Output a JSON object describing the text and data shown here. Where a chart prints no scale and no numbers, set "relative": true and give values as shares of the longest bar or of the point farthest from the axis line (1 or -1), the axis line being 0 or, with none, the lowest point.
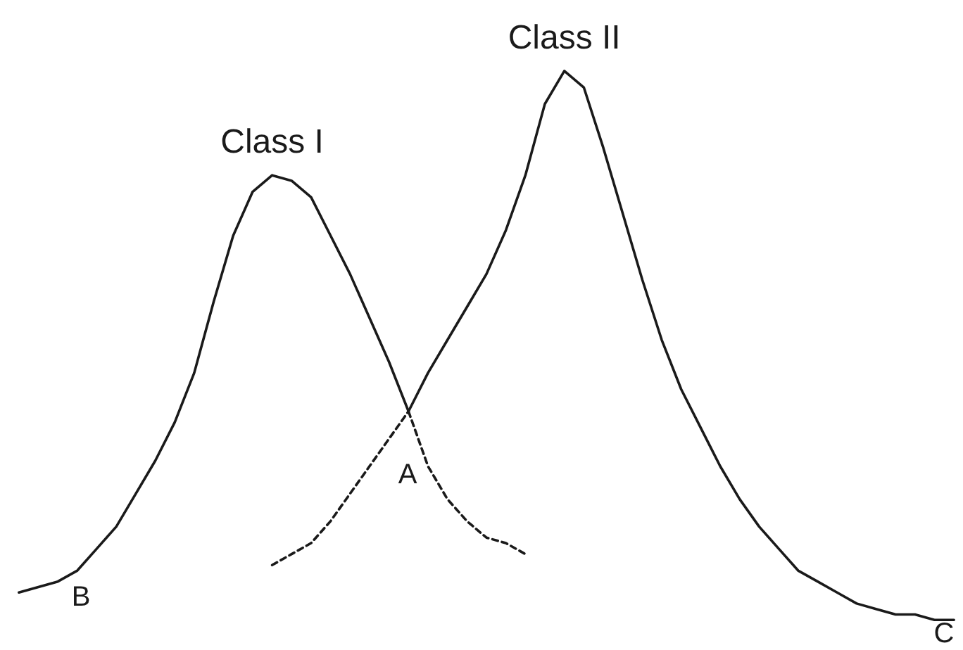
{
  "chart_data": {
    "type": "line",
    "relative": true,
    "categories": [
      null,
      null,
      null,
      null,
      null,
      null,
      null,
      null,
      null,
      null,
      null,
      null,
      null,
      null,
      null,
      null,
      null,
      null,
      null,
      null,
      null,
      null,
      null,
      null,
      null,
      null,
      null,
      null,
      null,
      null,
      null,
      null,
      null,
      null,
      null,
      null,
      null,
      null,
      null,
      null,
      null,
      null,
      null,
      null,
      null,
      null,
      null,
      null,
      null
    ],
    "series": [
      {
        "name": "Class I",
        "color": "#1a1a1a",
        "line_style": "solid",
        "values": [
          0.05,
          0.06,
          0.07,
          0.09,
          0.13,
          0.17,
          0.23,
          0.29,
          0.36,
          0.45,
          0.58,
          0.7,
          0.78,
          0.81,
          0.8,
          0.77,
          0.7,
          0.63,
          0.55,
          0.47,
          0.38,
          null,
          null,
          null,
          null,
          null,
          null,
          null,
          null,
          null,
          null,
          null,
          null,
          null,
          null,
          null,
          null,
          null,
          null,
          null,
          null,
          null,
          null,
          null,
          null,
          null,
          null,
          null,
          null
        ]
      },
      {
        "color": "#1a1a1a",
        "line_style": "dashed",
        "values": [
          null,
          null,
          null,
          null,
          null,
          null,
          null,
          null,
          null,
          null,
          null,
          null,
          null,
          null,
          null,
          null,
          null,
          null,
          null,
          null,
          0.38,
          0.28,
          0.22,
          0.18,
          0.15,
          0.14,
          0.12,
          null,
          null,
          null,
          null,
          null,
          null,
          null,
          null,
          null,
          null,
          null,
          null,
          null,
          null,
          null,
          null,
          null,
          null,
          null,
          null,
          null,
          null
        ]
      },
      {
        "name": "Class II",
        "color": "#1a1a1a",
        "line_style": "solid",
        "values": [
          null,
          null,
          null,
          null,
          null,
          null,
          null,
          null,
          null,
          null,
          null,
          null,
          null,
          null,
          null,
          null,
          null,
          null,
          null,
          null,
          0.38,
          0.45,
          0.51,
          0.57,
          0.63,
          0.71,
          0.81,
          0.94,
          1.0,
          0.97,
          0.86,
          0.74,
          0.62,
          0.51,
          0.42,
          0.35,
          0.28,
          0.22,
          0.17,
          0.13,
          0.09,
          0.07,
          0.05,
          0.03,
          0.02,
          0.01,
          0.01,
          0.0,
          0.0
        ]
      },
      {
        "color": "#1a1a1a",
        "line_style": "dashed",
        "values": [
          null,
          null,
          null,
          null,
          null,
          null,
          null,
          null,
          null,
          null,
          null,
          null,
          null,
          0.1,
          0.12,
          0.14,
          0.18,
          0.23,
          0.28,
          0.33,
          0.38,
          null,
          null,
          null,
          null,
          null,
          null,
          null,
          null,
          null,
          null,
          null,
          null,
          null,
          null,
          null,
          null,
          null,
          null,
          null,
          null,
          null,
          null,
          null,
          null,
          null,
          null,
          null,
          null
        ]
      }
    ],
    "annotations": [
      "A",
      "B",
      "C"
    ]
  }
}
